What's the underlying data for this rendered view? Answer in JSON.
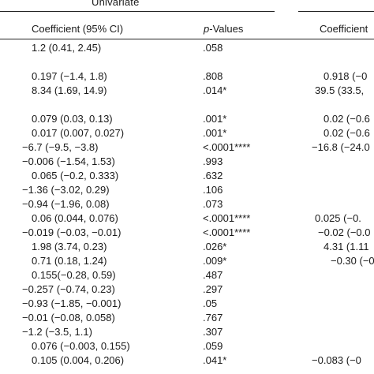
{
  "header": {
    "group_label": "Univariate",
    "col_coef": "Coefficient (95% CI)",
    "col_p_letter": "p",
    "col_p_rest": "-Values",
    "col_coef_right": "Coefficient"
  },
  "rows": [
    {
      "coef": "1.2 (0.41, 2.45)",
      "p": ".058",
      "right": ""
    },
    {
      "coef": "0.197 (−1.4, 1.8)",
      "p": ".808",
      "right": "0.918 (−0"
    },
    {
      "coef": "8.34 (1.69, 14.9)",
      "p": ".014*",
      "right": "39.5 (33.5,"
    },
    {
      "coef": "0.079 (0.03, 0.13)",
      "p": ".001*",
      "right": "0.02 (−0.6"
    },
    {
      "coef": "0.017 (0.007, 0.027)",
      "p": ".001*",
      "right": "0.02 (−0.6"
    },
    {
      "coef": "−6.7 (−9.5, −3.8)",
      "p": "<.0001****",
      "right": "−16.8 (−24.0"
    },
    {
      "coef": "−0.006 (−1.54, 1.53)",
      "p": ".993",
      "right": ""
    },
    {
      "coef": "0.065 (−0.2, 0.333)",
      "p": ".632",
      "right": ""
    },
    {
      "coef": "−1.36 (−3.02, 0.29)",
      "p": ".106",
      "right": ""
    },
    {
      "coef": "−0.94 (−1.96, 0.08)",
      "p": ".073",
      "right": ""
    },
    {
      "coef": "0.06 (0.044, 0.076)",
      "p": "<.0001****",
      "right": "0.025 (−0."
    },
    {
      "coef": "−0.019 (−0.03, −0.01)",
      "p": "<.0001****",
      "right": "−0.02 (−0.0"
    },
    {
      "coef": "1.98 (3.74, 0.23)",
      "p": ".026*",
      "right": "4.31 (1.11"
    },
    {
      "coef": "0.71 (0.18, 1.24)",
      "p": ".009*",
      "right": "−0.30 (−0.4"
    },
    {
      "coef": "0.155(−0.28, 0.59)",
      "p": ".487",
      "right": ""
    },
    {
      "coef": "−0.257 (−0.74, 0.23)",
      "p": ".297",
      "right": ""
    },
    {
      "coef": "−0.93 (−1.85, −0.001)",
      "p": ".05",
      "right": ""
    },
    {
      "coef": "−0.01 (−0.08, 0.058)",
      "p": ".767",
      "right": ""
    },
    {
      "coef": "−1.2 (−3.5, 1.1)",
      "p": ".307",
      "right": ""
    },
    {
      "coef": "0.076 (−0.003, 0.155)",
      "p": ".059",
      "right": ""
    },
    {
      "coef": "0.105 (0.004, 0.206)",
      "p": ".041*",
      "right": "−0.083 (−0"
    }
  ]
}
